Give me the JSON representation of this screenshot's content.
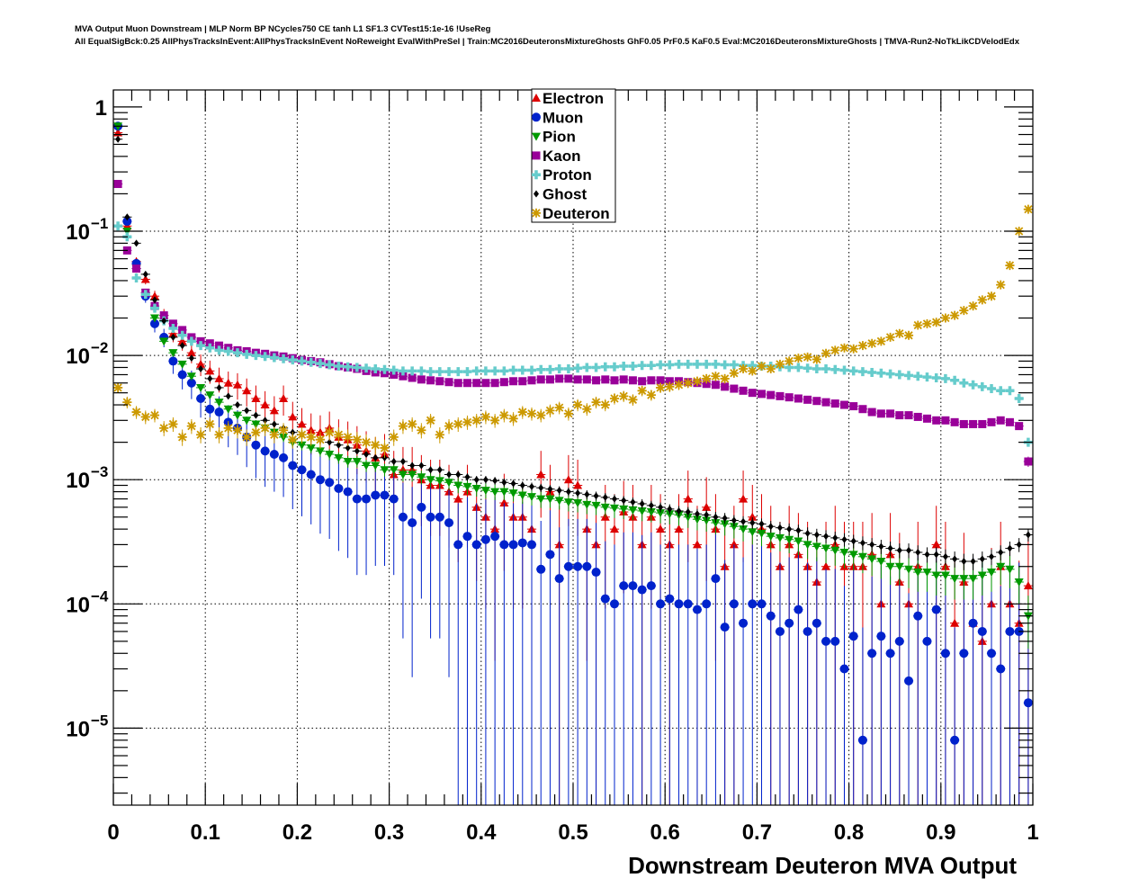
{
  "header": {
    "title_line1": "MVA Output Muon Downstream | MLP Norm BP NCycles750 CE tanh L1 SF1.3 CVTest15:1e-16 !UseReg",
    "title_line2": "All EqualSigBck:0.25 AllPhysTracksInEvent:AllPhysTracksInEvent NoReweight EvalWithPreSel | Train:MC2016DeuteronsMixtureGhosts GhF0.05 PrF0.5 KaF0.5 Eval:MC2016DeuteronsMixtureGhosts | TMVA-Run2-NoTkLikCDVelodEdx"
  },
  "chart_data": {
    "type": "scatter",
    "title": "MVA Output Muon Downstream",
    "xlabel": "Downstream Deuteron MVA Output",
    "ylabel": "",
    "xlim": [
      0,
      1
    ],
    "ylim": [
      2.4e-06,
      1.37
    ],
    "yscale": "log",
    "grid": true,
    "legend_position": "top-center",
    "x_ticks": [
      "0",
      "0.1",
      "0.2",
      "0.3",
      "0.4",
      "0.5",
      "0.6",
      "0.7",
      "0.8",
      "0.9",
      "1"
    ],
    "y_ticks": [
      {
        "base": "1",
        "exp": ""
      },
      {
        "base": "10",
        "exp": "−1"
      },
      {
        "base": "10",
        "exp": "−2"
      },
      {
        "base": "10",
        "exp": "−3"
      },
      {
        "base": "10",
        "exp": "−4"
      },
      {
        "base": "10",
        "exp": "−5"
      }
    ],
    "bins": 100,
    "series": [
      {
        "name": "Electron",
        "color": "#dd0000",
        "marker": "triangle-up",
        "values": [
          0.62,
          0.11,
          0.057,
          0.041,
          0.03,
          0.021,
          0.015,
          0.013,
          0.0105,
          0.0085,
          0.0075,
          0.0065,
          0.006,
          0.0058,
          0.0052,
          0.0045,
          0.004,
          0.0036,
          0.0045,
          0.0032,
          0.0028,
          0.0025,
          0.0024,
          0.0026,
          0.0022,
          0.0021,
          0.0019,
          0.0017,
          0.0015,
          0.0016,
          0.0011,
          0.0012,
          0.0012,
          0.001,
          0.0009,
          0.0009,
          0.0008,
          0.0007,
          0.0008,
          0.0006,
          0.0005,
          0.0004,
          0.00065,
          0.0005,
          0.0005,
          0.0004,
          0.0011,
          0.0008,
          0.0003,
          0.001,
          0.0009,
          0.0004,
          0.0003,
          0.0005,
          0.0004,
          0.00055,
          0.0005,
          0.0003,
          0.0005,
          0.0004,
          0.0003,
          0.0004,
          0.0007,
          0.0003,
          0.0006,
          0.0004,
          0.0002,
          0.0003,
          0.0007,
          0.0005,
          0.0004,
          0.0003,
          0.0002,
          0.0003,
          0.00025,
          0.0002,
          0.00015,
          0.0002,
          0.0003,
          0.0002,
          0.0002,
          0.0002,
          0.00025,
          0.0001,
          0.00025,
          0.00015,
          0.0001,
          0.0002,
          null,
          0.0003,
          0.0002,
          7e-05,
          0.00015,
          7e-05,
          5e-05,
          0.0001,
          0.0002,
          0.0001,
          7e-05,
          0.00014
        ]
      },
      {
        "name": "Muon",
        "color": "#0022cc",
        "marker": "circle",
        "values": [
          0.7,
          0.12,
          0.055,
          0.03,
          0.018,
          0.014,
          0.009,
          0.007,
          0.006,
          0.0045,
          0.0037,
          0.0035,
          0.0029,
          0.0026,
          0.0022,
          0.0019,
          0.0017,
          0.0016,
          0.0015,
          0.0013,
          0.0012,
          0.0011,
          0.001,
          0.00095,
          0.00085,
          0.0008,
          0.0007,
          0.0007,
          0.00075,
          0.00075,
          0.0007,
          0.0005,
          0.00045,
          0.0006,
          0.0005,
          0.0005,
          0.00045,
          0.0003,
          0.00035,
          0.0003,
          0.00033,
          0.00035,
          0.0003,
          0.0003,
          0.00031,
          0.0003,
          0.00019,
          0.00025,
          0.00016,
          0.0002,
          0.0002,
          0.0002,
          0.00018,
          0.00011,
          0.0001,
          0.00014,
          0.00014,
          0.00013,
          0.00014,
          0.0001,
          0.00011,
          0.0001,
          0.0001,
          9e-05,
          0.0001,
          0.00016,
          6.5e-05,
          0.0001,
          7e-05,
          0.0001,
          0.0001,
          8e-05,
          6e-05,
          7e-05,
          9e-05,
          6e-05,
          7e-05,
          5e-05,
          5e-05,
          3e-05,
          5.5e-05,
          8e-06,
          4e-05,
          5.5e-05,
          4e-05,
          5e-05,
          2.4e-05,
          8e-05,
          5e-05,
          9e-05,
          4e-05,
          8e-06,
          4e-05,
          7e-05,
          6e-05,
          4e-05,
          3e-05,
          6e-05,
          6e-05,
          1.6e-05
        ]
      },
      {
        "name": "Pion",
        "color": "#009900",
        "marker": "triangle-down",
        "values": [
          0.7,
          0.1,
          0.05,
          0.032,
          0.02,
          0.013,
          0.0105,
          0.0085,
          0.0068,
          0.0055,
          0.0048,
          0.0042,
          0.0037,
          0.0033,
          0.003,
          0.0028,
          0.0026,
          0.0024,
          0.0022,
          0.002,
          0.0019,
          0.0018,
          0.0017,
          0.0016,
          0.0015,
          0.0014,
          0.0014,
          0.0013,
          0.0013,
          0.0012,
          0.0012,
          0.0011,
          0.0011,
          0.00105,
          0.001,
          0.00098,
          0.00095,
          0.0009,
          0.00088,
          0.00085,
          0.00082,
          0.0008,
          0.0008,
          0.00078,
          0.00075,
          0.00073,
          0.0007,
          0.0007,
          0.00068,
          0.00066,
          0.00065,
          0.00063,
          0.00062,
          0.0006,
          0.00059,
          0.00058,
          0.00057,
          0.00056,
          0.00055,
          0.00054,
          0.00053,
          0.00052,
          0.0005,
          0.00048,
          0.00047,
          0.00045,
          0.00044,
          0.00042,
          0.0004,
          0.00038,
          0.00037,
          0.00035,
          0.00034,
          0.00033,
          0.00032,
          0.0003,
          0.00029,
          0.00028,
          0.00027,
          0.00026,
          0.00025,
          0.00024,
          0.00023,
          0.00022,
          0.0002,
          0.0002,
          0.00019,
          0.00018,
          0.00018,
          0.00017,
          0.00017,
          0.00016,
          0.00016,
          0.00016,
          0.00017,
          0.00018,
          0.0002,
          0.00019,
          0.00015,
          8e-05
        ]
      },
      {
        "name": "Kaon",
        "color": "#990099",
        "marker": "square",
        "values": [
          0.24,
          0.07,
          0.05,
          0.032,
          0.025,
          0.021,
          0.018,
          0.016,
          0.014,
          0.013,
          0.0125,
          0.012,
          0.0115,
          0.011,
          0.0108,
          0.0105,
          0.0103,
          0.01,
          0.0098,
          0.0095,
          0.0092,
          0.009,
          0.0088,
          0.0085,
          0.0082,
          0.008,
          0.0078,
          0.0075,
          0.0073,
          0.0072,
          0.007,
          0.0068,
          0.0066,
          0.0064,
          0.0063,
          0.0062,
          0.0061,
          0.006,
          0.006,
          0.006,
          0.006,
          0.006,
          0.0061,
          0.0062,
          0.0062,
          0.0063,
          0.0064,
          0.0064,
          0.0065,
          0.0065,
          0.0064,
          0.0064,
          0.0063,
          0.0064,
          0.0063,
          0.0064,
          0.0063,
          0.0062,
          0.0063,
          0.0063,
          0.0062,
          0.0062,
          0.0061,
          0.006,
          0.0059,
          0.0058,
          0.0056,
          0.0054,
          0.0052,
          0.005,
          0.0049,
          0.0048,
          0.0047,
          0.0046,
          0.0045,
          0.0044,
          0.0043,
          0.0042,
          0.0041,
          0.004,
          0.0039,
          0.0037,
          0.0035,
          0.0034,
          0.0034,
          0.0033,
          0.0033,
          0.0032,
          0.0031,
          0.003,
          0.003,
          0.0029,
          0.0028,
          0.0028,
          0.0028,
          0.0029,
          0.003,
          0.0029,
          0.0027,
          0.0014
        ]
      },
      {
        "name": "Proton",
        "color": "#66cccc",
        "marker": "plus",
        "values": [
          0.11,
          0.09,
          0.042,
          0.031,
          0.024,
          0.019,
          0.0165,
          0.0145,
          0.013,
          0.012,
          0.0115,
          0.011,
          0.0108,
          0.0105,
          0.0102,
          0.01,
          0.0098,
          0.0096,
          0.0094,
          0.0092,
          0.009,
          0.0088,
          0.0086,
          0.0084,
          0.0082,
          0.0081,
          0.008,
          0.0079,
          0.0078,
          0.0077,
          0.0076,
          0.0075,
          0.0075,
          0.0075,
          0.0074,
          0.0074,
          0.0074,
          0.0074,
          0.0074,
          0.0075,
          0.0075,
          0.0075,
          0.0075,
          0.0076,
          0.0076,
          0.0076,
          0.0077,
          0.0077,
          0.0078,
          0.0078,
          0.0079,
          0.008,
          0.008,
          0.0081,
          0.0081,
          0.0082,
          0.0082,
          0.0083,
          0.0083,
          0.0084,
          0.0084,
          0.0085,
          0.0085,
          0.0085,
          0.0085,
          0.0085,
          0.0084,
          0.0084,
          0.0083,
          0.0083,
          0.0082,
          0.0082,
          0.0081,
          0.008,
          0.008,
          0.0079,
          0.0078,
          0.0078,
          0.0077,
          0.0076,
          0.0075,
          0.0074,
          0.0073,
          0.0072,
          0.0071,
          0.007,
          0.0069,
          0.0068,
          0.0067,
          0.0066,
          0.0065,
          0.0063,
          0.006,
          0.0058,
          0.0056,
          0.0054,
          0.0052,
          0.0052,
          0.0045,
          0.002
        ]
      },
      {
        "name": "Ghost",
        "color": "#000000",
        "marker": "diamond",
        "values": [
          0.55,
          0.13,
          0.08,
          0.045,
          0.028,
          0.019,
          0.014,
          0.012,
          0.0095,
          0.0078,
          0.0065,
          0.0055,
          0.0047,
          0.004,
          0.0036,
          0.0033,
          0.003,
          0.0028,
          0.0026,
          0.0024,
          0.0023,
          0.0022,
          0.0021,
          0.002,
          0.0019,
          0.0018,
          0.0017,
          0.0016,
          0.0015,
          0.0015,
          0.0014,
          0.0014,
          0.0013,
          0.0013,
          0.0012,
          0.0012,
          0.0011,
          0.0011,
          0.00105,
          0.001,
          0.001,
          0.00098,
          0.00095,
          0.00093,
          0.0009,
          0.00088,
          0.00086,
          0.00084,
          0.00082,
          0.0008,
          0.00078,
          0.00076,
          0.00074,
          0.00072,
          0.0007,
          0.00068,
          0.00066,
          0.00064,
          0.00062,
          0.0006,
          0.00058,
          0.00056,
          0.00055,
          0.00053,
          0.00052,
          0.0005,
          0.00049,
          0.00047,
          0.00046,
          0.00045,
          0.00044,
          0.00042,
          0.00041,
          0.0004,
          0.00039,
          0.00037,
          0.00036,
          0.00035,
          0.00034,
          0.00033,
          0.00032,
          0.00031,
          0.0003,
          0.00029,
          0.00028,
          0.00027,
          0.00027,
          0.00026,
          0.00025,
          0.00025,
          0.00024,
          0.00023,
          0.00022,
          0.00022,
          0.00023,
          0.00024,
          0.00026,
          0.00028,
          0.0003,
          0.00036
        ]
      },
      {
        "name": "Deuteron",
        "color": "#cc9900",
        "marker": "star",
        "values": [
          0.0055,
          0.0042,
          0.0035,
          0.0032,
          0.0033,
          0.0026,
          0.0028,
          0.0022,
          0.0027,
          0.0023,
          0.0028,
          0.0023,
          0.0026,
          0.0025,
          0.0022,
          0.0024,
          0.0026,
          0.0023,
          0.0025,
          0.0021,
          0.0023,
          0.0022,
          0.0021,
          0.0024,
          0.0023,
          0.0022,
          0.0021,
          0.002,
          0.0019,
          0.0018,
          0.0022,
          0.0027,
          0.0028,
          0.0025,
          0.003,
          0.0023,
          0.0027,
          0.0028,
          0.0029,
          0.003,
          0.0032,
          0.003,
          0.0033,
          0.0031,
          0.0035,
          0.0034,
          0.0033,
          0.0036,
          0.0038,
          0.0034,
          0.004,
          0.0037,
          0.0042,
          0.004,
          0.0045,
          0.0047,
          0.0044,
          0.0052,
          0.0048,
          0.0055,
          0.0056,
          0.0058,
          0.006,
          0.0062,
          0.0065,
          0.0068,
          0.0065,
          0.0072,
          0.0078,
          0.0075,
          0.0082,
          0.0078,
          0.0085,
          0.009,
          0.0095,
          0.0097,
          0.0093,
          0.0104,
          0.011,
          0.0115,
          0.0113,
          0.012,
          0.0125,
          0.013,
          0.014,
          0.015,
          0.0145,
          0.0175,
          0.018,
          0.0185,
          0.02,
          0.021,
          0.023,
          0.025,
          0.028,
          0.03,
          0.037,
          0.053,
          0.1,
          0.15
        ]
      }
    ]
  }
}
